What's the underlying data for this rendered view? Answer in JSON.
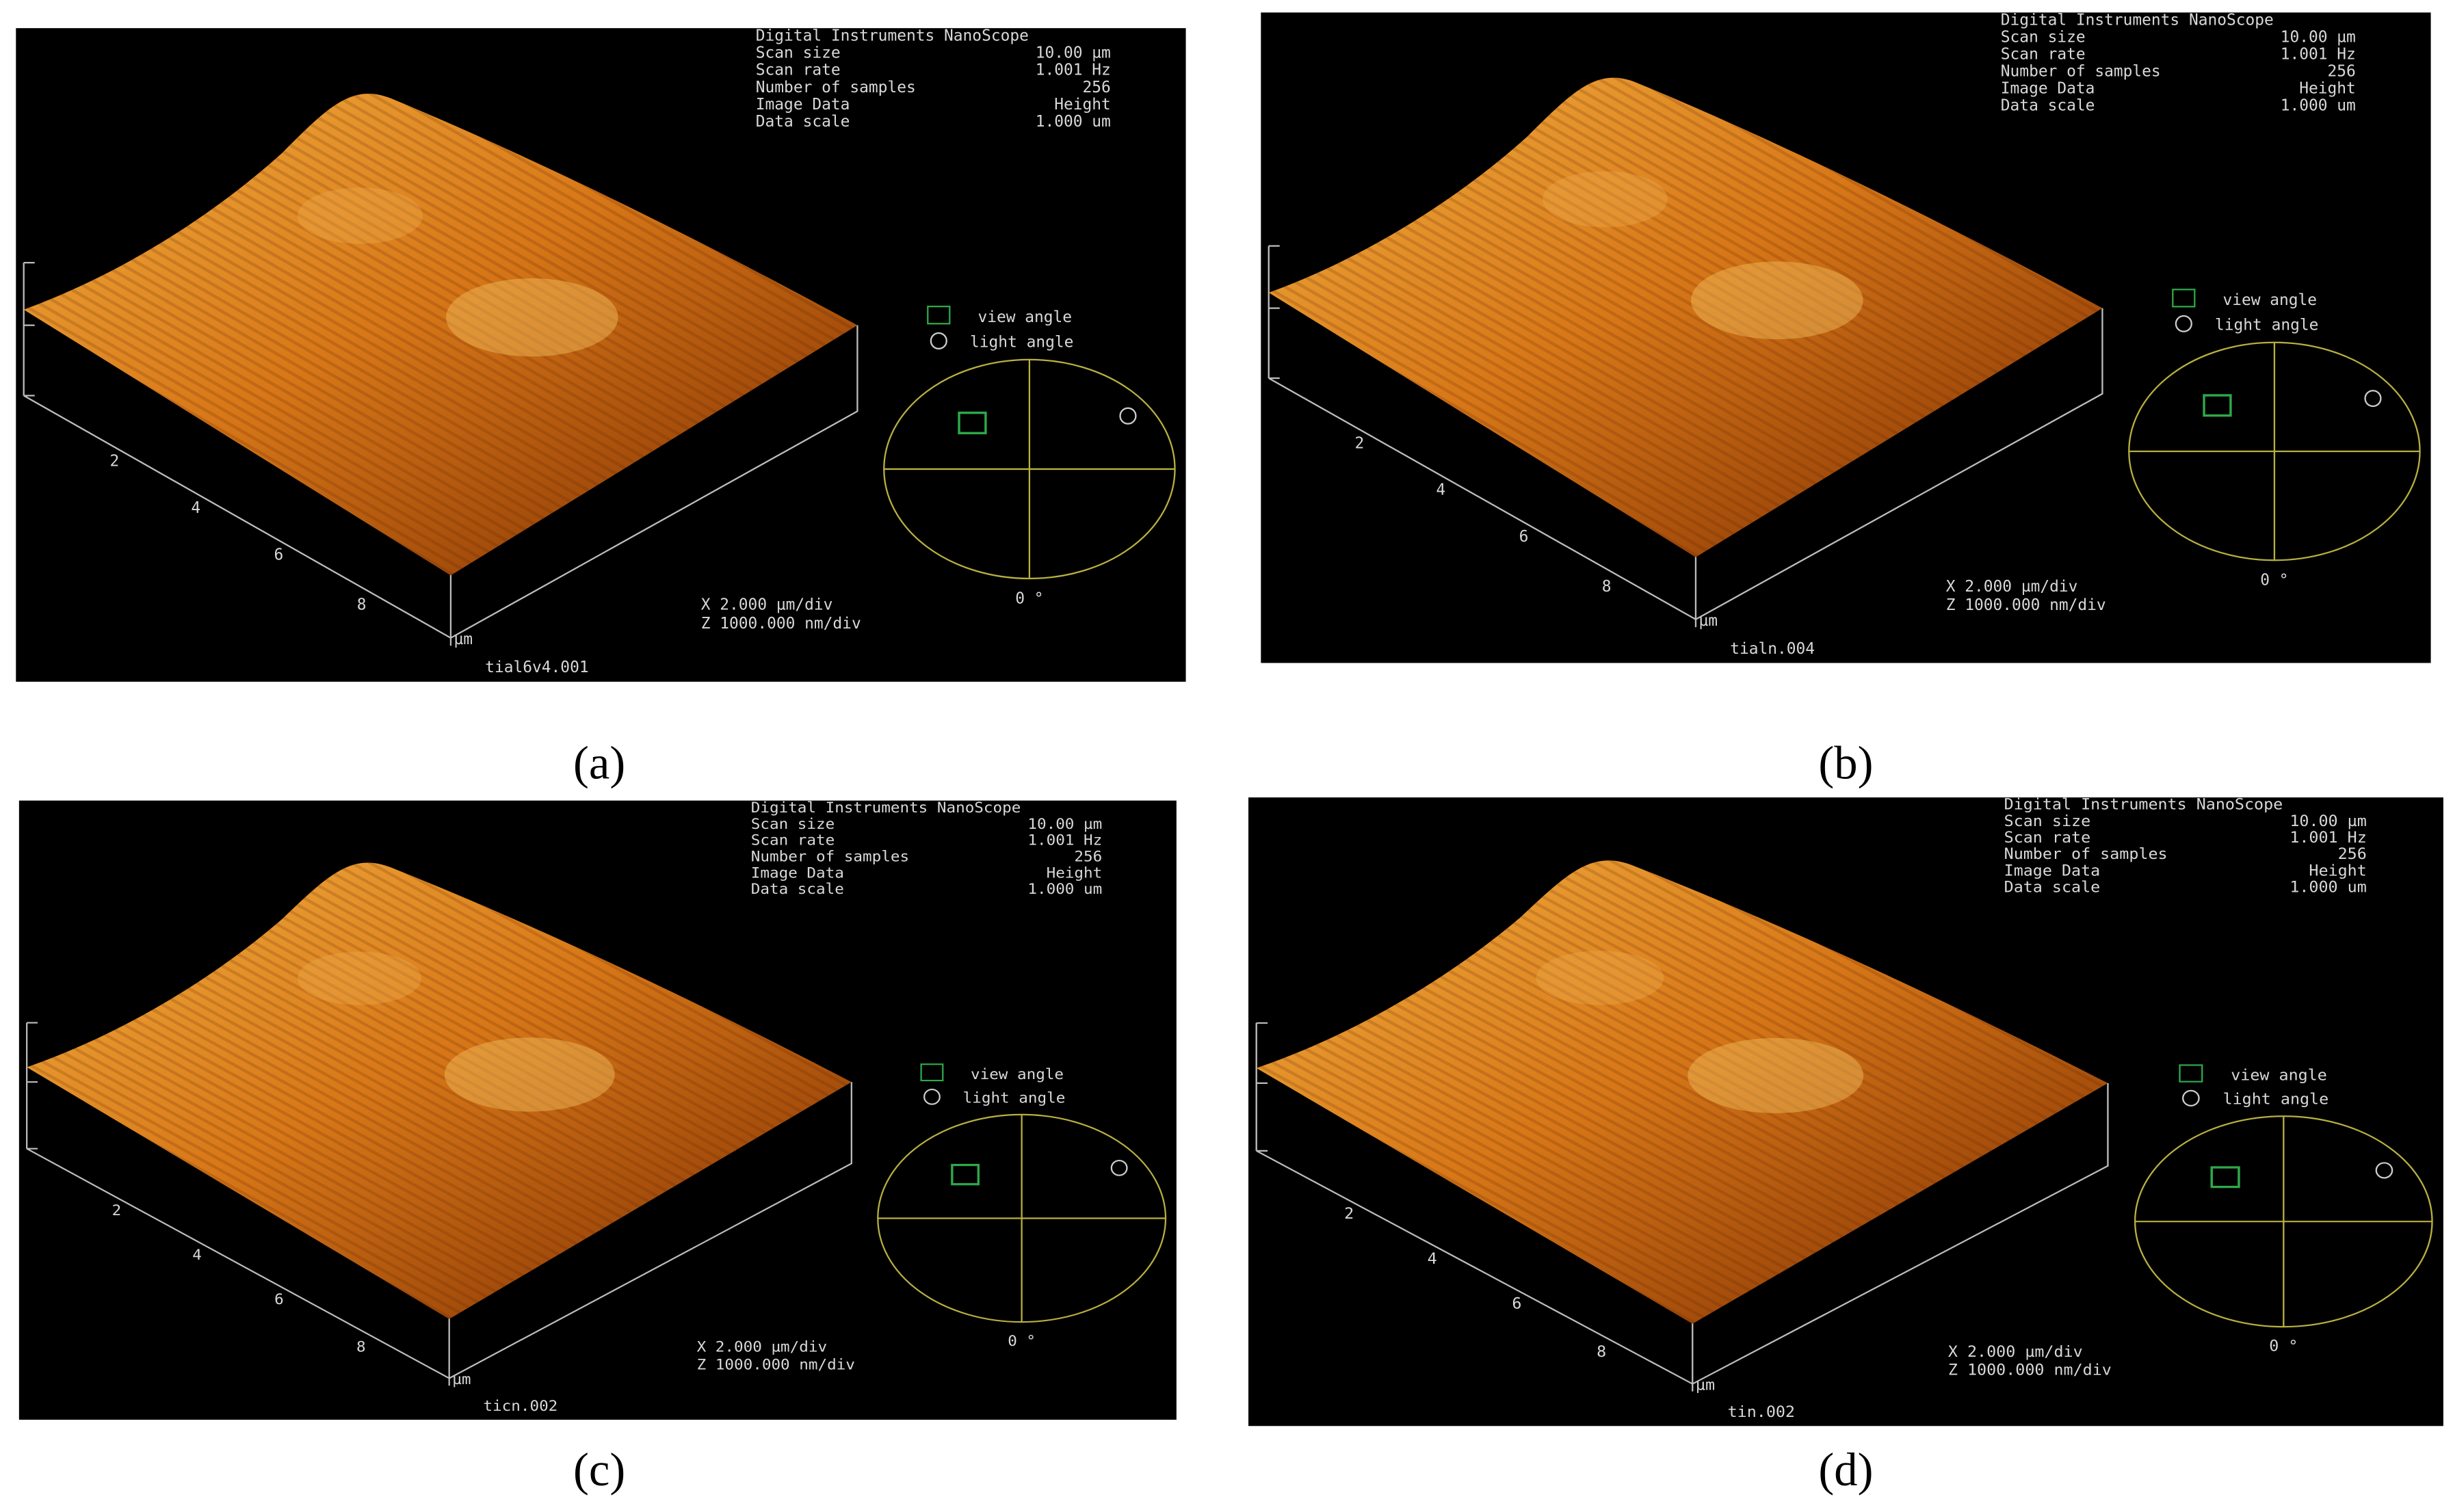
{
  "panels": [
    {
      "caption": "(a)",
      "caption_letter": "a",
      "header": {
        "title": "Digital Instruments NanoScope",
        "rows": [
          [
            "Scan size",
            "10.00 µm"
          ],
          [
            "Scan rate",
            "1.001 Hz"
          ],
          [
            "Number of samples",
            "256"
          ],
          [
            "Image Data",
            "Height"
          ],
          [
            "Data scale",
            "1.000 um"
          ]
        ]
      },
      "view_angle": "view angle",
      "light_angle": "light angle",
      "angle_zero": "0 °",
      "axis_ticks": [
        "2",
        "4",
        "6",
        "8"
      ],
      "axis_unit": "µm",
      "scale": [
        "X  2.000 µm/div",
        "Z  1000.000 nm/div"
      ],
      "file": "tial6v4.001"
    },
    {
      "caption": "(b)",
      "caption_letter": "b",
      "header": {
        "title": "Digital Instruments NanoScope",
        "rows": [
          [
            "Scan size",
            "10.00 µm"
          ],
          [
            "Scan rate",
            "1.001 Hz"
          ],
          [
            "Number of samples",
            "256"
          ],
          [
            "Image Data",
            "Height"
          ],
          [
            "Data scale",
            "1.000 um"
          ]
        ]
      },
      "view_angle": "view angle",
      "light_angle": "light angle",
      "angle_zero": "0 °",
      "axis_ticks": [
        "2",
        "4",
        "6",
        "8"
      ],
      "axis_unit": "µm",
      "scale": [
        "X  2.000 µm/div",
        "Z  1000.000 nm/div"
      ],
      "file": "tialn.004"
    },
    {
      "caption": "(c)",
      "caption_letter": "c",
      "header": {
        "title": "Digital Instruments NanoScope",
        "rows": [
          [
            "Scan size",
            "10.00 µm"
          ],
          [
            "Scan rate",
            "1.001 Hz"
          ],
          [
            "Number of samples",
            "256"
          ],
          [
            "Image Data",
            "Height"
          ],
          [
            "Data scale",
            "1.000 um"
          ]
        ]
      },
      "view_angle": "view angle",
      "light_angle": "light angle",
      "angle_zero": "0 °",
      "axis_ticks": [
        "2",
        "4",
        "6",
        "8"
      ],
      "axis_unit": "µm",
      "scale": [
        "X  2.000 µm/div",
        "Z  1000.000 nm/div"
      ],
      "file": "ticn.002"
    },
    {
      "caption": "(d)",
      "caption_letter": "d",
      "header": {
        "title": "Digital Instruments NanoScope",
        "rows": [
          [
            "Scan size",
            "10.00 µm"
          ],
          [
            "Scan rate",
            "1.001 Hz"
          ],
          [
            "Number of samples",
            "256"
          ],
          [
            "Image Data",
            "Height"
          ],
          [
            "Data scale",
            "1.000 um"
          ]
        ]
      },
      "view_angle": "view angle",
      "light_angle": "light angle",
      "angle_zero": "0 °",
      "axis_ticks": [
        "2",
        "4",
        "6",
        "8"
      ],
      "axis_unit": "µm",
      "scale": [
        "X  2.000 µm/div",
        "Z  1000.000 nm/div"
      ],
      "file": "tin.002"
    }
  ]
}
